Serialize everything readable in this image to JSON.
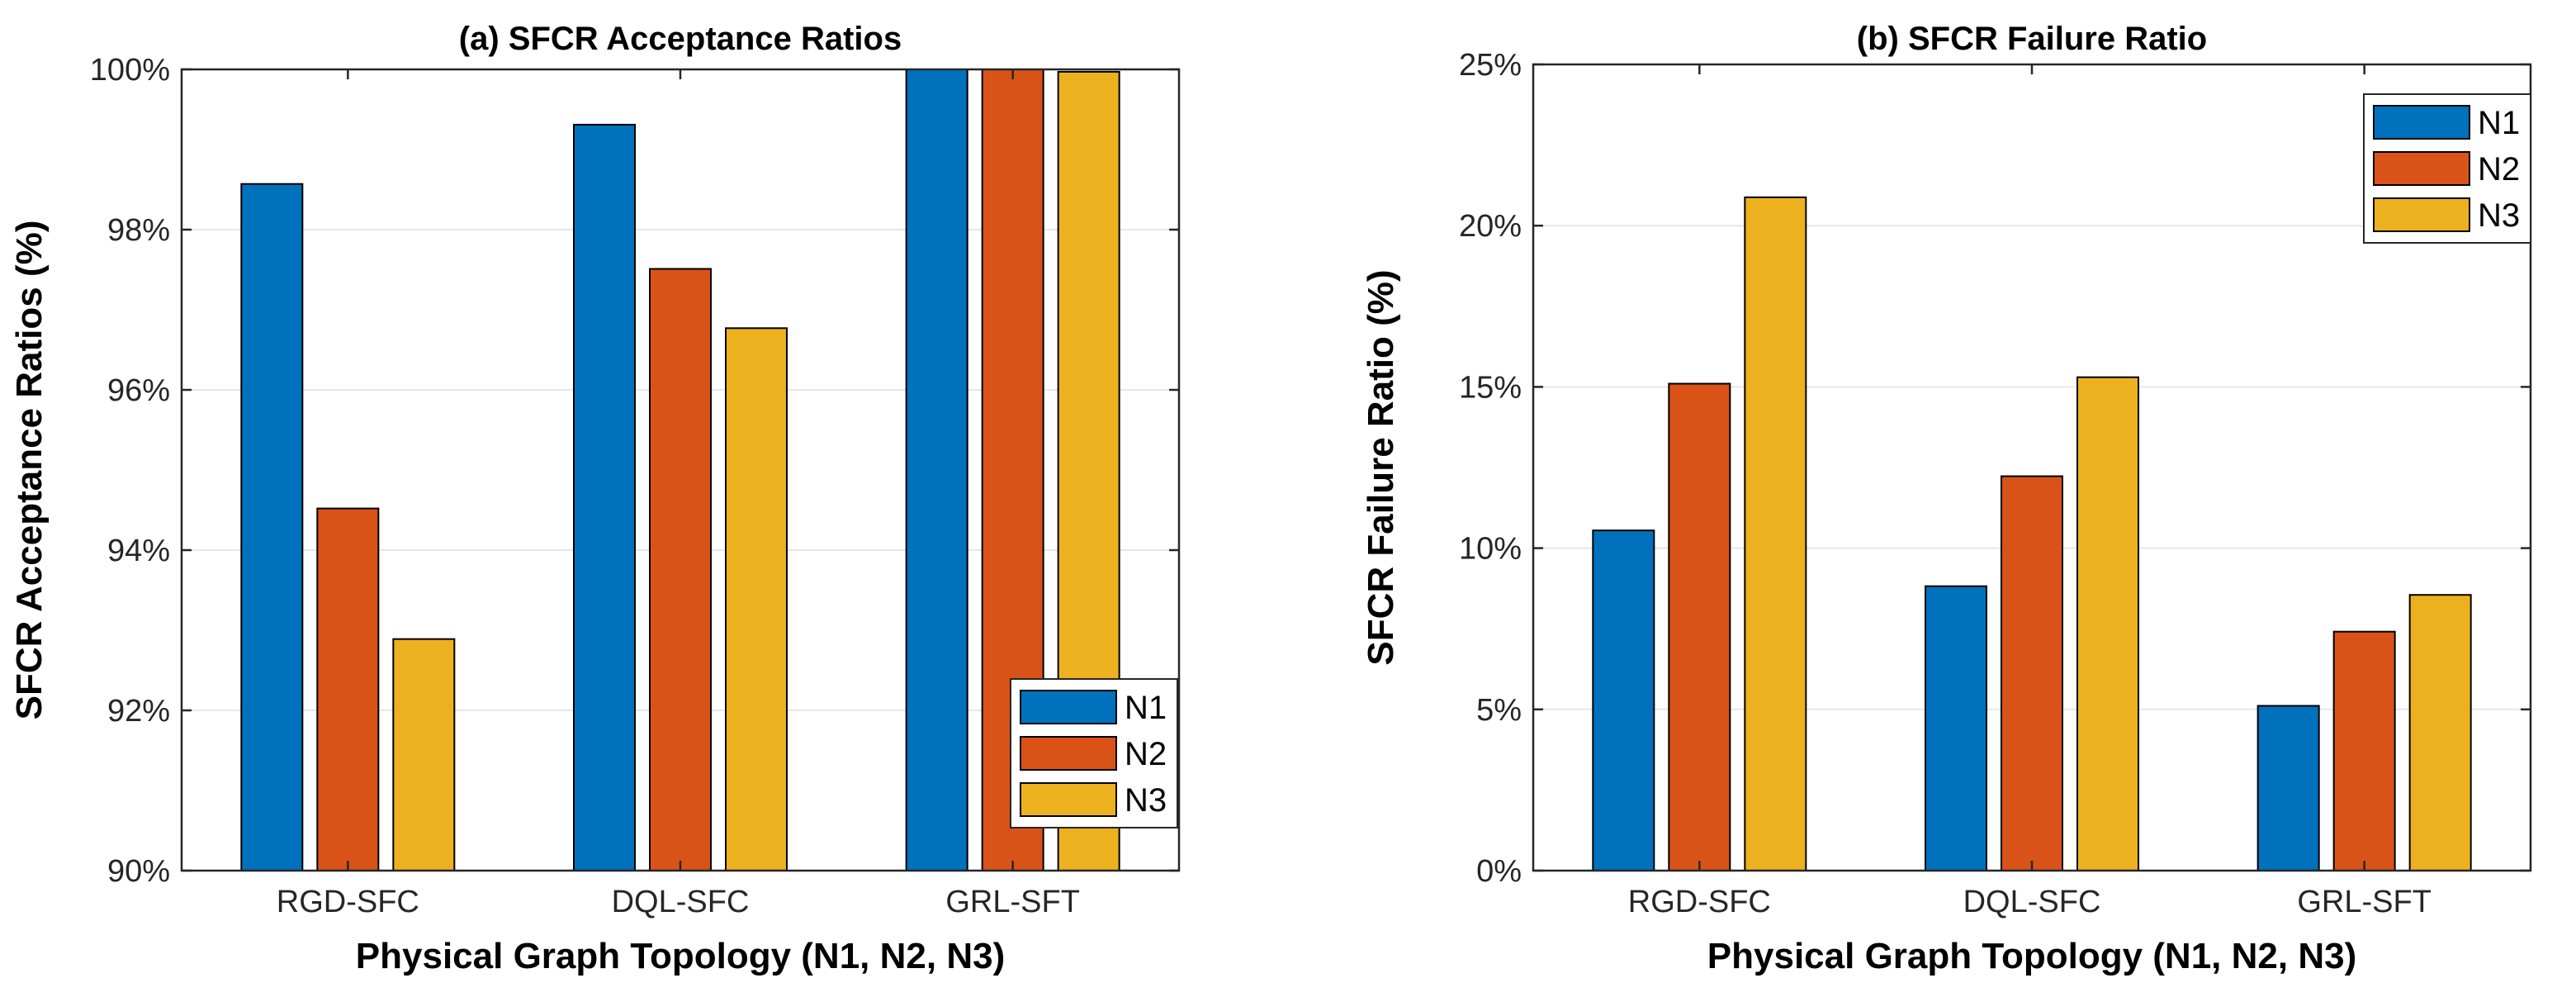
{
  "chart_data": [
    {
      "type": "bar",
      "title": "(a) SFCR Acceptance Ratios",
      "xlabel": "Physical Graph Topology (N1, N2, N3)",
      "ylabel": "SFCR Acceptance Ratios (%)",
      "categories": [
        "RGD-SFC",
        "DQL-SFC",
        "GRL-SFT"
      ],
      "ylim": [
        90,
        100
      ],
      "yticks": [
        90,
        92,
        94,
        96,
        98,
        100
      ],
      "ytick_labels": [
        "90%",
        "92%",
        "94%",
        "96%",
        "98%",
        "100%"
      ],
      "legend_position": "bottom-right",
      "series": [
        {
          "name": "N1",
          "color": "#0072BD",
          "values": [
            98.57,
            99.31,
            100.0
          ]
        },
        {
          "name": "N2",
          "color": "#D95319",
          "values": [
            94.52,
            97.51,
            100.0
          ]
        },
        {
          "name": "N3",
          "color": "#EDB120",
          "values": [
            92.89,
            96.77,
            99.97
          ]
        }
      ]
    },
    {
      "type": "bar",
      "title": "(b) SFCR Failure Ratio",
      "xlabel": "Physical Graph Topology (N1, N2, N3)",
      "ylabel": "SFCR Failure Ratio (%)",
      "categories": [
        "RGD-SFC",
        "DQL-SFC",
        "GRL-SFT"
      ],
      "ylim": [
        0,
        25
      ],
      "yticks": [
        0,
        5,
        10,
        15,
        20,
        25
      ],
      "ytick_labels": [
        "0%",
        "5%",
        "10%",
        "15%",
        "20%",
        "25%"
      ],
      "legend_position": "top-right",
      "series": [
        {
          "name": "N1",
          "color": "#0072BD",
          "values": [
            10.55,
            8.82,
            5.11
          ]
        },
        {
          "name": "N2",
          "color": "#D95319",
          "values": [
            15.1,
            12.23,
            7.41
          ]
        },
        {
          "name": "N3",
          "color": "#EDB120",
          "values": [
            20.88,
            15.3,
            8.55
          ]
        }
      ]
    }
  ]
}
